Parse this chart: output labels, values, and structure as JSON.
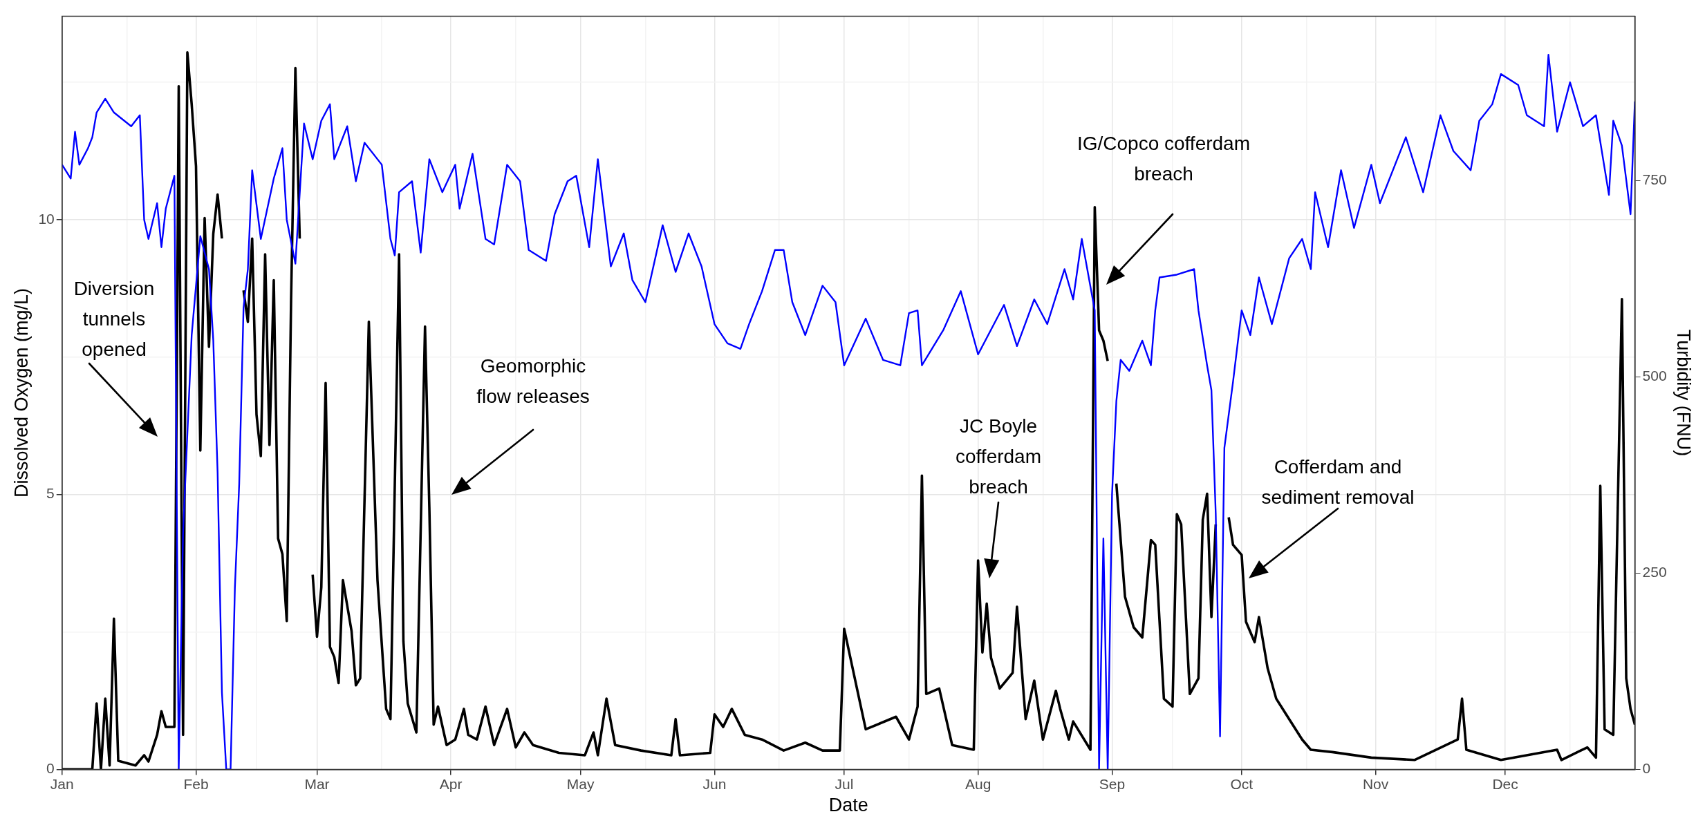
{
  "chart_data": {
    "type": "line",
    "xlabel": "Date",
    "ylabel": "Dissolved Oxygen (mg/L)",
    "y2label": "Turbidity (FNU)",
    "xlim": [
      "--01-01",
      "--12-31"
    ],
    "xticks": [
      {
        "value": "--01-01",
        "label": "Jan"
      },
      {
        "value": "--01-16",
        "label": null
      },
      {
        "value": "--02-01",
        "label": "Feb"
      },
      {
        "value": "--02-15",
        "label": null
      },
      {
        "value": "--03-01",
        "label": "Mar"
      },
      {
        "value": "--03-16",
        "label": null
      },
      {
        "value": "--04-01",
        "label": "Apr"
      },
      {
        "value": "--04-16",
        "label": null
      },
      {
        "value": "--05-01",
        "label": "May"
      },
      {
        "value": "--05-16",
        "label": null
      },
      {
        "value": "--06-01",
        "label": "Jun"
      },
      {
        "value": "--06-16",
        "label": null
      },
      {
        "value": "--07-01",
        "label": "Jul"
      },
      {
        "value": "--07-16",
        "label": null
      },
      {
        "value": "--08-01",
        "label": "Aug"
      },
      {
        "value": "--08-16",
        "label": null
      },
      {
        "value": "--09-01",
        "label": "Sep"
      },
      {
        "value": "--09-15",
        "label": null
      },
      {
        "value": "--10-01",
        "label": "Oct"
      },
      {
        "value": "--10-16",
        "label": null
      },
      {
        "value": "--11-01",
        "label": "Nov"
      },
      {
        "value": "--11-15",
        "label": null
      },
      {
        "value": "--12-01",
        "label": "Dec"
      },
      {
        "value": "--12-16",
        "label": null
      }
    ],
    "ylim": [
      0,
      13.7
    ],
    "yticks": [
      0,
      {
        "value": 2.5,
        "label": null
      },
      5,
      {
        "value": 7.5,
        "label": null
      },
      10,
      {
        "value": 12.5,
        "label": null
      }
    ],
    "y2lim": [
      0,
      959
    ],
    "y2ticks": [
      0,
      250,
      500,
      750
    ],
    "grid": true,
    "legend": false,
    "marker": "none",
    "line_style": "solid",
    "series": [
      {
        "color": "#0000ff",
        "x": [
          "--01-01",
          "--01-03",
          "--01-04",
          "--01-05",
          "--01-07",
          "--01-08",
          "--01-09",
          "--01-11",
          "--01-13",
          "--01-17",
          "--01-19",
          "--01-20",
          "--01-21",
          "--01-23",
          "--01-24",
          "--01-25",
          "--01-27",
          "--01-28",
          "--01-29",
          "--01-31",
          "--02-02",
          "--02-04",
          "--02-05",
          "--02-06",
          "--02-07",
          "--02-08",
          "--02-09",
          "--02-10",
          "--02-11",
          "--02-12",
          "--02-13",
          "--02-14",
          "--02-16",
          "--02-19",
          "--02-21",
          "--02-22",
          "--02-24",
          "--02-26",
          "--02-28",
          "--03-02",
          "--03-04",
          "--03-05",
          "--03-08",
          "--03-10",
          "--03-12",
          "--03-16",
          "--03-18",
          "--03-19",
          "--03-20",
          "--03-23",
          "--03-25",
          "--03-27",
          "--03-30",
          "--04-02",
          "--04-03",
          "--04-06",
          "--04-09",
          "--04-11",
          "--04-14",
          "--04-17",
          "--04-19",
          "--04-23",
          "--04-25",
          "--04-28",
          "--04-30",
          "--05-03",
          "--05-05",
          "--05-08",
          "--05-11",
          "--05-13",
          "--05-16",
          "--05-20",
          "--05-23",
          "--05-26",
          "--05-29",
          "--06-01",
          "--06-04",
          "--06-07",
          "--06-09",
          "--06-12",
          "--06-15",
          "--06-17",
          "--06-19",
          "--06-22",
          "--06-26",
          "--06-29",
          "--07-01",
          "--07-06",
          "--07-10",
          "--07-14",
          "--07-16",
          "--07-18",
          "--07-19",
          "--07-24",
          "--07-28",
          "--08-01",
          "--08-04",
          "--08-07",
          "--08-10",
          "--08-14",
          "--08-17",
          "--08-21",
          "--08-23",
          "--08-25",
          "--08-28",
          "--08-29",
          "--08-30",
          "--08-31",
          "--09-01",
          "--09-02",
          "--09-03",
          "--09-05",
          "--09-08",
          "--09-10",
          "--09-11",
          "--09-12",
          "--09-16",
          "--09-20",
          "--09-21",
          "--09-23",
          "--09-24",
          "--09-25",
          "--09-26",
          "--09-27",
          "--09-29",
          "--10-01",
          "--10-03",
          "--10-05",
          "--10-08",
          "--10-12",
          "--10-15",
          "--10-17",
          "--10-18",
          "--10-21",
          "--10-24",
          "--10-27",
          "--10-31",
          "--11-02",
          "--11-08",
          "--11-12",
          "--11-16",
          "--11-19",
          "--11-23",
          "--11-25",
          "--11-28",
          "--11-30",
          "--12-04",
          "--12-06",
          "--12-10",
          "--12-11",
          "--12-13",
          "--12-16",
          "--12-19",
          "--12-22",
          "--12-25",
          "--12-26",
          "--12-28",
          "--12-30",
          "--12-31"
        ],
        "values": [
          11.0,
          10.75,
          11.6,
          11.0,
          11.3,
          11.5,
          11.95,
          12.2,
          11.95,
          11.7,
          11.9,
          10.0,
          9.65,
          10.3,
          9.5,
          10.2,
          10.8,
          0,
          4.3,
          7.9,
          9.7,
          9.1,
          7.8,
          5.4,
          1.4,
          0,
          0,
          3.3,
          5.2,
          8.4,
          9.1,
          10.9,
          9.65,
          10.75,
          11.3,
          10.0,
          9.2,
          11.75,
          11.1,
          11.8,
          12.1,
          11.1,
          11.7,
          10.7,
          11.4,
          11.0,
          9.65,
          9.35,
          10.5,
          10.7,
          9.4,
          11.1,
          10.5,
          11.0,
          10.2,
          11.2,
          9.65,
          9.55,
          11.0,
          10.7,
          9.45,
          9.25,
          10.1,
          10.7,
          10.8,
          9.5,
          11.1,
          9.15,
          9.75,
          8.9,
          8.5,
          9.9,
          9.05,
          9.75,
          9.15,
          8.1,
          7.75,
          7.65,
          8.1,
          8.7,
          9.45,
          9.45,
          8.5,
          7.9,
          8.8,
          8.5,
          7.35,
          8.2,
          7.45,
          7.35,
          8.3,
          8.35,
          7.35,
          8.0,
          8.7,
          7.55,
          8.0,
          8.45,
          7.7,
          8.55,
          8.1,
          9.1,
          8.55,
          9.65,
          8.35,
          0,
          4.2,
          0,
          5.0,
          6.7,
          7.45,
          7.25,
          7.8,
          7.35,
          8.35,
          8.95,
          9.0,
          9.1,
          8.35,
          7.35,
          6.9,
          4.65,
          0.6,
          5.85,
          7.05,
          8.35,
          7.9,
          8.95,
          8.1,
          9.3,
          9.65,
          9.1,
          10.5,
          9.5,
          10.9,
          9.85,
          11.0,
          10.3,
          11.5,
          10.5,
          11.9,
          11.25,
          10.9,
          11.8,
          12.1,
          12.65,
          12.45,
          11.9,
          11.7,
          13.0,
          11.6,
          12.5,
          11.7,
          11.9,
          10.45,
          11.8,
          11.35,
          10.1,
          12.15
        ]
      },
      {
        "color": "#000000",
        "axis": "y2",
        "x": [
          "--01-01",
          "--01-08",
          "--01-09",
          "--01-10",
          "--01-11",
          "--01-12",
          "--01-13",
          "--01-14",
          "--01-18",
          "--01-20",
          "--01-21",
          "--01-23",
          "--01-24",
          "--01-25",
          "--01-27",
          "--01-28",
          "--01-29",
          "--01-30",
          "--01-31",
          "--02-01",
          "--02-02",
          "--02-03",
          "--02-04",
          "--02-05",
          "--02-06",
          "--02-07",
          "--02-08",
          "--02-12",
          "--02-13",
          "--02-14",
          "--02-15",
          "--02-16",
          "--02-17",
          "--02-18",
          "--02-19",
          "--02-20",
          "--02-21",
          "--02-22",
          "--02-23",
          "--02-24",
          "--02-25",
          "--02-26",
          "--02-28",
          "--03-01",
          "--03-02",
          "--03-03",
          "--03-04",
          "--03-05",
          "--03-06",
          "--03-07",
          "--03-09",
          "--03-10",
          "--03-11",
          "--03-13",
          "--03-15",
          "--03-17",
          "--03-18",
          "--03-20",
          "--03-21",
          "--03-22",
          "--03-24",
          "--03-26",
          "--03-27",
          "--03-28",
          "--03-29",
          "--03-31",
          "--04-02",
          "--04-04",
          "--04-05",
          "--04-07",
          "--04-09",
          "--04-11",
          "--04-14",
          "--04-16",
          "--04-18",
          "--04-20",
          "--04-26",
          "--05-02",
          "--05-04",
          "--05-05",
          "--05-07",
          "--05-09",
          "--05-15",
          "--05-22",
          "--05-23",
          "--05-24",
          "--05-31",
          "--06-01",
          "--06-03",
          "--06-05",
          "--06-08",
          "--06-12",
          "--06-17",
          "--06-22",
          "--06-26",
          "--06-30",
          "--07-01",
          "--07-06",
          "--07-13",
          "--07-16",
          "--07-18",
          "--07-19",
          "--07-20",
          "--07-23",
          "--07-26",
          "--07-31",
          "--08-01",
          "--08-02",
          "--08-03",
          "--08-04",
          "--08-06",
          "--08-09",
          "--08-10",
          "--08-12",
          "--08-14",
          "--08-16",
          "--08-19",
          "--08-20",
          "--08-22",
          "--08-23",
          "--08-27",
          "--08-28",
          "--08-29",
          "--08-30",
          "--08-31",
          "--09-01",
          "--09-02",
          "--09-04",
          "--09-06",
          "--09-08",
          "--09-10",
          "--09-11",
          "--09-13",
          "--09-15",
          "--09-16",
          "--09-17",
          "--09-19",
          "--09-21",
          "--09-22",
          "--09-23",
          "--09-24",
          "--09-25",
          "--09-26",
          "--09-28",
          "--09-29",
          "--10-01",
          "--10-02",
          "--10-04",
          "--10-05",
          "--10-07",
          "--10-09",
          "--10-12",
          "--10-15",
          "--10-17",
          "--10-22",
          "--10-31",
          "--11-10",
          "--11-20",
          "--11-21",
          "--11-22",
          "--11-30",
          "--12-13",
          "--12-14",
          "--12-20",
          "--12-22",
          "--12-23",
          "--12-24",
          "--12-26",
          "--12-28",
          "--12-29",
          "--12-30",
          "--12-31"
        ],
        "values": [
          0,
          0,
          84,
          0,
          90,
          5,
          192,
          11,
          5,
          18,
          10,
          44,
          74,
          54,
          54,
          870,
          44,
          913,
          847,
          768,
          406,
          702,
          538,
          682,
          732,
          676,
          null,
          610,
          570,
          676,
          452,
          399,
          656,
          413,
          623,
          294,
          274,
          189,
          597,
          893,
          676,
          null,
          248,
          169,
          232,
          492,
          156,
          143,
          110,
          241,
          176,
          107,
          116,
          570,
          241,
          77,
          64,
          656,
          163,
          84,
          47,
          564,
          334,
          57,
          80,
          31,
          38,
          77,
          44,
          38,
          80,
          31,
          77,
          28,
          47,
          31,
          21,
          18,
          47,
          18,
          90,
          31,
          24,
          18,
          64,
          18,
          21,
          70,
          54,
          77,
          44,
          38,
          24,
          34,
          24,
          24,
          179,
          51,
          67,
          38,
          80,
          374,
          96,
          103,
          31,
          25,
          266,
          149,
          211,
          142,
          103,
          123,
          207,
          64,
          113,
          38,
          100,
          77,
          38,
          61,
          25,
          716,
          559,
          546,
          520,
          null,
          364,
          220,
          181,
          168,
          292,
          286,
          90,
          80,
          325,
          312,
          96,
          116,
          318,
          351,
          194,
          312,
          null,
          321,
          286,
          273,
          188,
          162,
          194,
          129,
          90,
          64,
          38,
          25,
          22,
          15,
          12,
          38,
          90,
          25,
          12,
          25,
          12,
          28,
          15,
          361,
          51,
          44,
          599,
          116,
          77,
          57
        ]
      }
    ],
    "annotations": [
      "Diversion tunnels opened",
      "Geomorphic flow releases",
      "JC Boyle cofferdam breach",
      "IG/Copco cofferdam breach",
      "Cofferdam and sediment removal"
    ]
  }
}
